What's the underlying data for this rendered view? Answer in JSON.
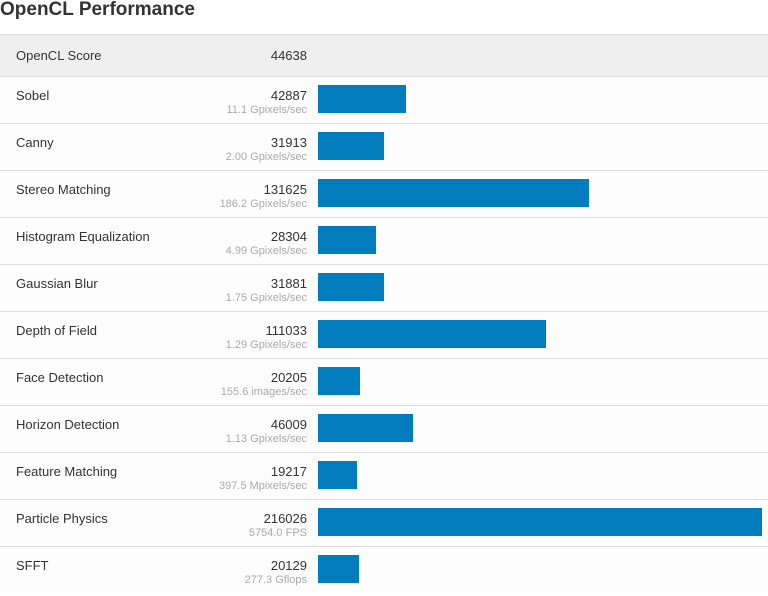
{
  "page": {
    "title": "OpenCL Performance"
  },
  "header": {
    "label": "OpenCL Score",
    "score": "44638"
  },
  "rows": [
    {
      "name": "Sobel",
      "score": "42887",
      "rate": "11.1 Gpixels/sec"
    },
    {
      "name": "Canny",
      "score": "31913",
      "rate": "2.00 Gpixels/sec"
    },
    {
      "name": "Stereo Matching",
      "score": "131625",
      "rate": "186.2 Gpixels/sec"
    },
    {
      "name": "Histogram Equalization",
      "score": "28304",
      "rate": "4.99 Gpixels/sec"
    },
    {
      "name": "Gaussian Blur",
      "score": "31881",
      "rate": "1.75 Gpixels/sec"
    },
    {
      "name": "Depth of Field",
      "score": "111033",
      "rate": "1.29 Gpixels/sec"
    },
    {
      "name": "Face Detection",
      "score": "20205",
      "rate": "155.6 images/sec"
    },
    {
      "name": "Horizon Detection",
      "score": "46009",
      "rate": "1.13 Gpixels/sec"
    },
    {
      "name": "Feature Matching",
      "score": "19217",
      "rate": "397.5 Mpixels/sec"
    },
    {
      "name": "Particle Physics",
      "score": "216026",
      "rate": "5754.0 FPS"
    },
    {
      "name": "SFFT",
      "score": "20129",
      "rate": "277.3 Gflops"
    }
  ],
  "colors": {
    "bar": "#017cbd",
    "header_bg": "#efefef",
    "row_border": "#dddddd",
    "subtext": "#aaaaaa"
  },
  "chart_data": {
    "type": "bar",
    "orientation": "horizontal",
    "title": "OpenCL Performance",
    "summary": {
      "label": "OpenCL Score",
      "value": 44638
    },
    "categories": [
      "Sobel",
      "Canny",
      "Stereo Matching",
      "Histogram Equalization",
      "Gaussian Blur",
      "Depth of Field",
      "Face Detection",
      "Horizon Detection",
      "Feature Matching",
      "Particle Physics",
      "SFFT"
    ],
    "values": [
      42887,
      31913,
      131625,
      28304,
      31881,
      111033,
      20205,
      46009,
      19217,
      216026,
      20129
    ],
    "secondary_labels": [
      "11.1 Gpixels/sec",
      "2.00 Gpixels/sec",
      "186.2 Gpixels/sec",
      "4.99 Gpixels/sec",
      "1.75 Gpixels/sec",
      "1.29 Gpixels/sec",
      "155.6 images/sec",
      "1.13 Gpixels/sec",
      "397.5 Mpixels/sec",
      "5754.0 FPS",
      "277.3 Gflops"
    ],
    "xlabel": "",
    "ylabel": "",
    "xlim": [
      0,
      216026
    ],
    "grid": false,
    "legend": null
  }
}
